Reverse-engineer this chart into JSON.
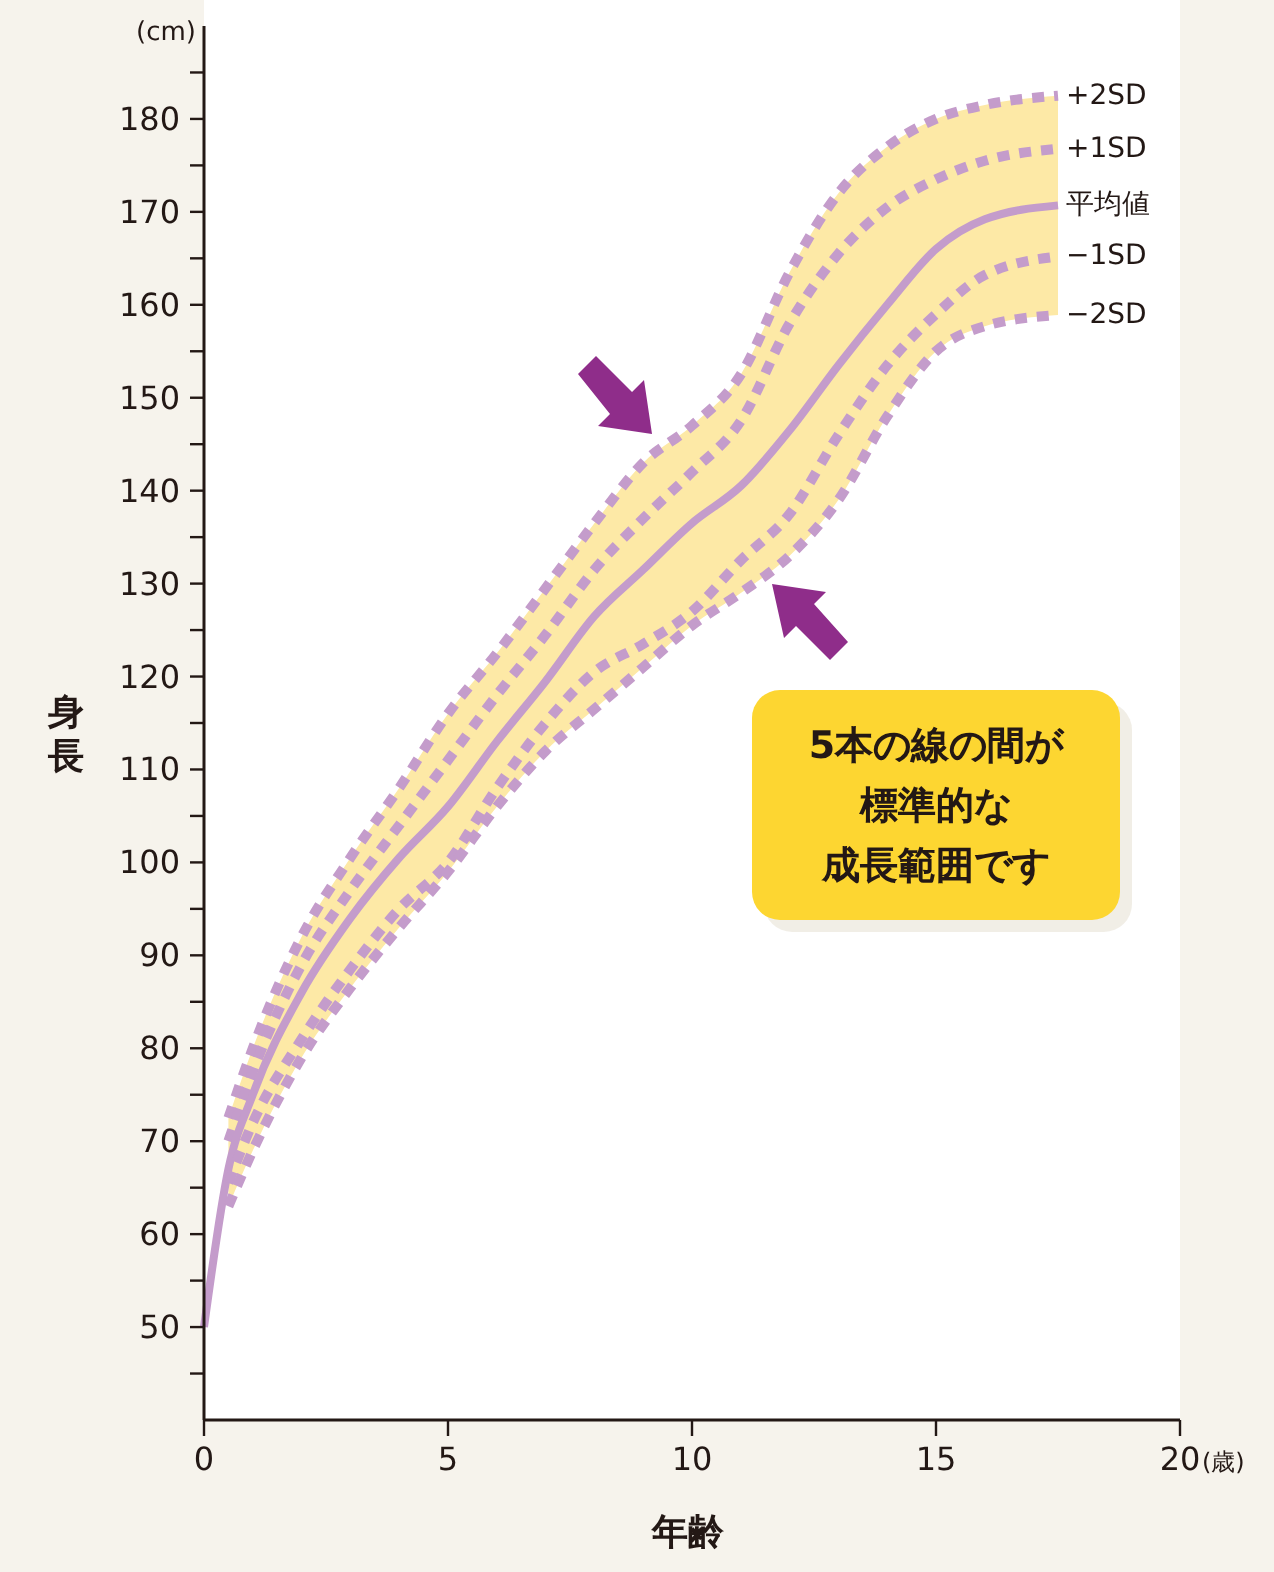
{
  "chart_data": {
    "type": "line",
    "xlabel": "年齢",
    "ylabel": "身長",
    "xlim": [
      0,
      20
    ],
    "xticks": [
      0,
      5,
      10,
      15,
      20
    ],
    "ylim": [
      40,
      190
    ],
    "yticks": [
      {
        "value": 45,
        "label": null
      },
      50,
      {
        "value": 55,
        "label": null
      },
      60,
      {
        "value": 65,
        "label": null
      },
      70,
      {
        "value": 75,
        "label": null
      },
      80,
      {
        "value": 85,
        "label": null
      },
      90,
      {
        "value": 95,
        "label": null
      },
      100,
      {
        "value": 105,
        "label": null
      },
      110,
      {
        "value": 115,
        "label": null
      },
      120,
      {
        "value": 125,
        "label": null
      },
      130,
      {
        "value": 135,
        "label": null
      },
      140,
      {
        "value": 145,
        "label": null
      },
      150,
      {
        "value": 155,
        "label": null
      },
      160,
      {
        "value": 165,
        "label": null
      },
      170,
      {
        "value": 175,
        "label": null
      },
      180,
      {
        "value": 185,
        "label": null
      }
    ],
    "grid": false,
    "legend": false,
    "marker": "none",
    "x": [
      0.5,
      1,
      2,
      3,
      4,
      5,
      6,
      7,
      8,
      9,
      10,
      11,
      12,
      13,
      14,
      15,
      16,
      17.5
    ],
    "series": [
      {
        "name": "+2SD",
        "color": "#c49ccb",
        "line_style": "dashed",
        "values": [
          72.5,
          80,
          92,
          100.5,
          108,
          116,
          122.5,
          129.5,
          136.5,
          143,
          147,
          152.5,
          163.5,
          172,
          177,
          180,
          181.5,
          182.5
        ]
      },
      {
        "name": "+1SD",
        "color": "#c49ccb",
        "line_style": "dashed",
        "values": [
          70,
          77.5,
          89,
          97,
          104,
          111,
          118,
          124.5,
          131.5,
          137,
          142,
          147.5,
          158,
          165.5,
          170.5,
          173.5,
          175.5,
          176.8
        ]
      },
      {
        "name": "平均値",
        "color": "#c49ccb",
        "line_style": "solid",
        "x": [
          0,
          0.5,
          1,
          2,
          3,
          4,
          5,
          6,
          7,
          8,
          9,
          10,
          11,
          12,
          13,
          14,
          15,
          16,
          17.5
        ],
        "values": [
          50,
          67,
          75,
          86,
          94,
          100.5,
          106,
          113,
          119.5,
          126.5,
          131.5,
          136.5,
          140.5,
          146.5,
          153.5,
          160,
          166,
          169.2,
          170.7
        ],
        "lower": [
          null,
          63,
          69,
          79,
          86.5,
          93,
          99,
          106,
          112,
          116.5,
          121,
          125.5,
          129,
          133,
          139,
          148,
          155,
          157.7,
          158.9
        ],
        "upper": [
          null,
          72.5,
          80,
          92,
          100.5,
          108,
          116,
          122.5,
          129.5,
          136.5,
          143,
          147,
          152.5,
          163.5,
          172,
          177,
          180,
          181.5,
          182.5
        ]
      },
      {
        "name": "−1SD",
        "color": "#c49ccb",
        "line_style": "dashed",
        "values": [
          65.5,
          72,
          81,
          88.5,
          95,
          100,
          108,
          115,
          120.5,
          123.5,
          127,
          132.5,
          137.5,
          146,
          153.5,
          159,
          163.2,
          165.2
        ]
      },
      {
        "name": "−2SD",
        "color": "#c49ccb",
        "line_style": "dashed",
        "values": [
          63,
          69,
          79,
          86.5,
          93,
          99,
          106,
          112,
          116.5,
          121,
          125.5,
          129,
          133,
          139,
          148,
          155,
          157.7,
          158.9
        ]
      }
    ],
    "annotations": [
      "(cm)",
      "(歳)",
      "5本の線の間が",
      "標準的な",
      "成長範囲です"
    ]
  }
}
